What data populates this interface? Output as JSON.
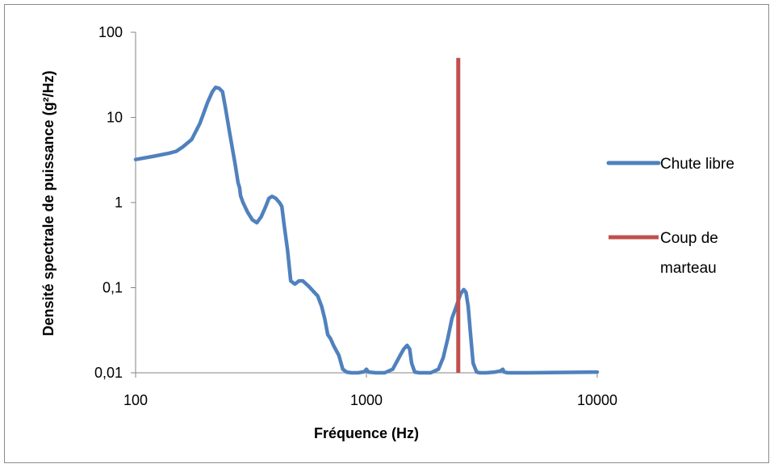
{
  "chart_data": {
    "type": "line",
    "xscale": "log",
    "yscale": "log",
    "xlim": [
      100,
      10000
    ],
    "ylim": [
      0.01,
      100
    ],
    "xlabel": "Fréquence (Hz)",
    "ylabel": "Densité spectrale de puissance (g²/Hz)",
    "x_ticks": [
      "100",
      "1000",
      "10000"
    ],
    "y_ticks": [
      "0,01",
      "0,1",
      "1",
      "10",
      "100"
    ],
    "legend_position": "right",
    "grid": false,
    "series": [
      {
        "name": "Chute libre",
        "color": "#4f81bd",
        "x": [
          100,
          120,
          140,
          150,
          160,
          175,
          190,
          205,
          215,
          222,
          230,
          238,
          245,
          255,
          270,
          278,
          282,
          285,
          292,
          305,
          320,
          335,
          350,
          365,
          378,
          390,
          405,
          420,
          430,
          440,
          455,
          470,
          490,
          510,
          530,
          560,
          590,
          615,
          640,
          660,
          680,
          700,
          720,
          760,
          790,
          820,
          860,
          920,
          980,
          1000,
          1020,
          1100,
          1200,
          1300,
          1400,
          1450,
          1500,
          1540,
          1570,
          1620,
          1700,
          1900,
          2050,
          2150,
          2250,
          2350,
          2450,
          2560,
          2640,
          2700,
          2760,
          2820,
          2900,
          3000,
          3100,
          3300,
          3600,
          3800,
          3900,
          3950,
          4100,
          5000,
          10000
        ],
        "y": [
          3.2,
          3.5,
          3.8,
          4.0,
          4.5,
          5.5,
          8.5,
          15,
          20,
          22.5,
          22,
          20,
          13,
          6.8,
          2.8,
          1.7,
          1.5,
          1.2,
          1.0,
          0.78,
          0.63,
          0.58,
          0.68,
          0.88,
          1.12,
          1.18,
          1.12,
          1.0,
          0.9,
          0.55,
          0.28,
          0.12,
          0.11,
          0.12,
          0.12,
          0.105,
          0.09,
          0.08,
          0.06,
          0.043,
          0.028,
          0.025,
          0.021,
          0.016,
          0.011,
          0.0102,
          0.01,
          0.01,
          0.0103,
          0.011,
          0.0102,
          0.01,
          0.01,
          0.011,
          0.016,
          0.019,
          0.021,
          0.019,
          0.013,
          0.0102,
          0.01,
          0.01,
          0.011,
          0.015,
          0.025,
          0.044,
          0.06,
          0.085,
          0.095,
          0.088,
          0.06,
          0.03,
          0.013,
          0.0102,
          0.01,
          0.01,
          0.0102,
          0.0105,
          0.011,
          0.0102,
          0.01,
          0.01,
          0.0102
        ]
      },
      {
        "name": "Coup de marteau",
        "color": "#c0504d",
        "x": [
          2500,
          2500
        ],
        "y": [
          0.01,
          50
        ]
      }
    ]
  },
  "legend": {
    "line1": "Chute libre",
    "line2a": "Coup de",
    "line2b": "marteau"
  }
}
